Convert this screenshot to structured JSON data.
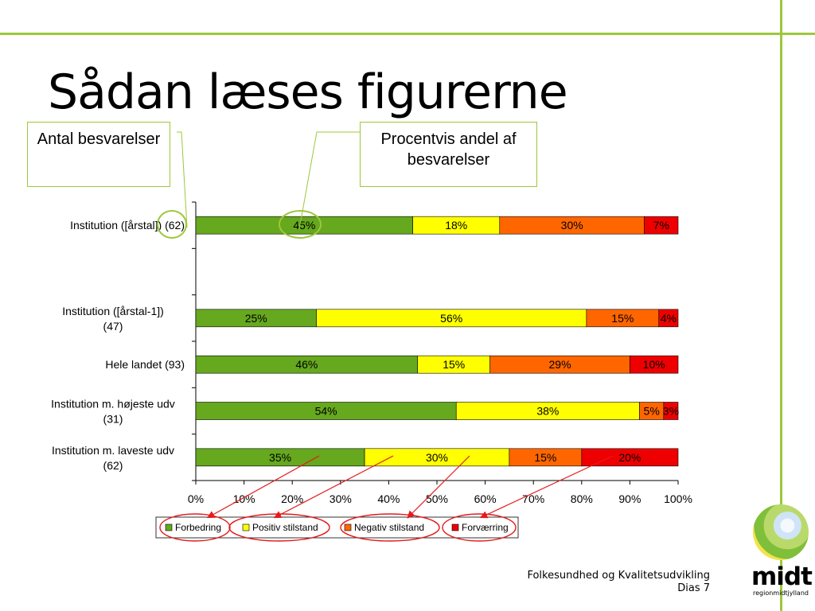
{
  "slide": {
    "title": "Sådan læses figurerne",
    "callout_left": "Antal besvarelser",
    "callout_right": "Procentvis andel af besvarelser",
    "footer_line1": "Folkesundhed og Kvalitetsudvikling",
    "footer_line2": "Dias 7",
    "logo_text": "midt",
    "logo_subtext": "regionmidtjylland"
  },
  "colors": {
    "accent": "#9dc83a",
    "annotation": "#e31a1c",
    "series": [
      "#66a81e",
      "#ffff00",
      "#ff6600",
      "#ee0000"
    ]
  },
  "chart_data": {
    "type": "bar",
    "orientation": "horizontal",
    "stacked": true,
    "percent": true,
    "categories": [
      "Institution ([årstal]) (62)",
      "",
      "Institution ([årstal-1]) (47)",
      "Hele landet (93)",
      "Institution m. højeste udv (31)",
      "Institution m. laveste udv (62)"
    ],
    "series": [
      {
        "name": "Forbedring",
        "values": [
          45,
          null,
          25,
          46,
          54,
          35
        ],
        "labels": [
          "45%",
          "",
          "25%",
          "46%",
          "54%",
          "35%"
        ]
      },
      {
        "name": "Positiv stilstand",
        "values": [
          18,
          null,
          56,
          15,
          38,
          30
        ],
        "labels": [
          "18%",
          "",
          "56%",
          "15%",
          "38%",
          "30%"
        ]
      },
      {
        "name": "Negativ stilstand",
        "values": [
          30,
          null,
          15,
          29,
          5,
          15
        ],
        "labels": [
          "30%",
          "",
          "15%",
          "29%",
          "5%",
          "15%"
        ]
      },
      {
        "name": "Forværring",
        "values": [
          7,
          null,
          4,
          10,
          3,
          20
        ],
        "labels": [
          "7%",
          "",
          "4%",
          "10%",
          "3%",
          "20%"
        ]
      }
    ],
    "x_ticks": [
      "0%",
      "10%",
      "20%",
      "30%",
      "40%",
      "50%",
      "60%",
      "70%",
      "80%",
      "90%",
      "100%"
    ],
    "xlim": [
      0,
      100
    ],
    "grid": false,
    "legend_position": "bottom"
  }
}
